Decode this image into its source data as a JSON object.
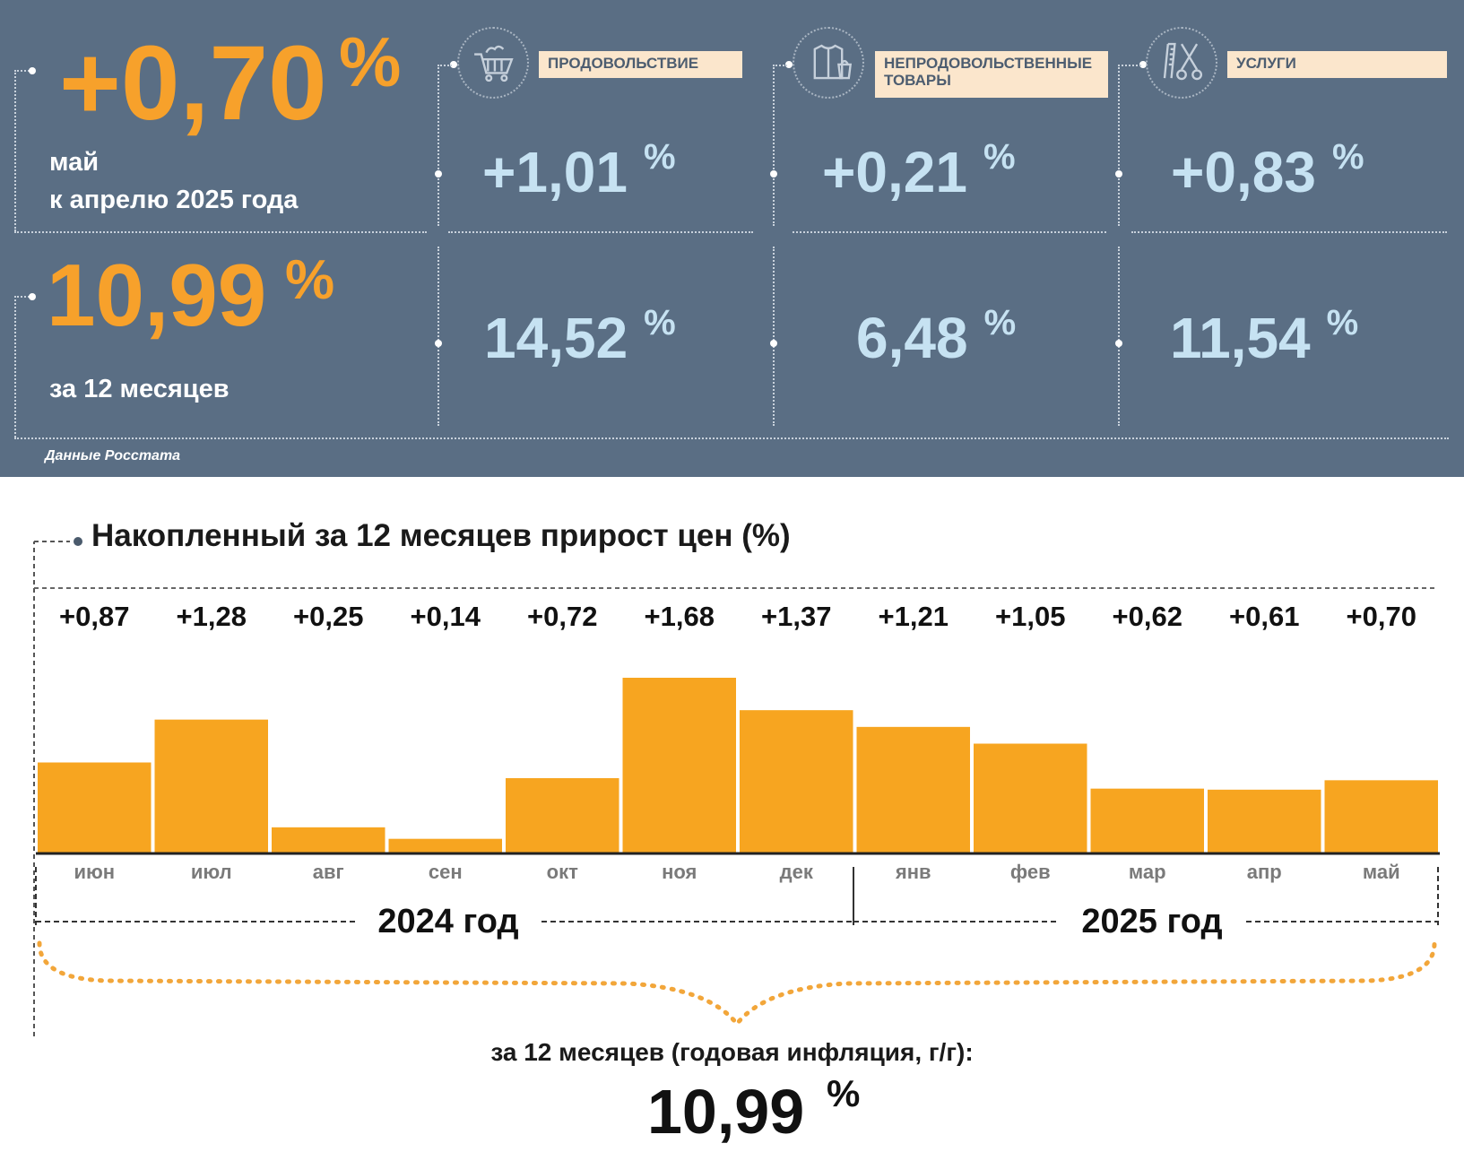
{
  "header": {
    "monthly_change": "+0,70",
    "monthly_percent_sign": "%",
    "monthly_caption_line1": "май",
    "monthly_caption_line2": "к апрелю 2025 года",
    "annual_change": "10,99",
    "annual_percent_sign": "%",
    "annual_caption": "за 12 месяцев",
    "source": "Данные Росстата"
  },
  "categories": [
    {
      "label": "ПРОДОВОЛЬСТВИЕ",
      "icon": "shopping-cart-icon",
      "monthly": "+1,01",
      "annual": "14,52",
      "percent_sign": "%"
    },
    {
      "label": "НЕПРОДОВОЛЬСТВЕННЫЕ ТОВАРЫ",
      "icon": "clothes-bag-icon",
      "monthly": "+0,21",
      "annual": "6,48",
      "percent_sign": "%"
    },
    {
      "label": "УСЛУГИ",
      "icon": "comb-scissors-icon",
      "monthly": "+0,83",
      "annual": "11,54",
      "percent_sign": "%"
    }
  ],
  "colors": {
    "panel_background": "#5a6e84",
    "accent_orange": "#f7a12b",
    "value_blue": "#c6e2f2",
    "label_background": "#fbe6cc",
    "bar_color": "#f7a520"
  },
  "chart_data": {
    "type": "bar",
    "title": "Накопленный за 12 месяцев прирост цен (%)",
    "categories": [
      "июн",
      "июл",
      "авг",
      "сен",
      "окт",
      "ноя",
      "дек",
      "янв",
      "фев",
      "мар",
      "апр",
      "май"
    ],
    "values": [
      0.87,
      1.28,
      0.25,
      0.14,
      0.72,
      1.68,
      1.37,
      1.21,
      1.05,
      0.62,
      0.61,
      0.7
    ],
    "value_labels": [
      "+0,87",
      "+1,28",
      "+0,25",
      "+0,14",
      "+0,72",
      "+1,68",
      "+1,37",
      "+1,21",
      "+1,05",
      "+0,62",
      "+0,61",
      "+0,70"
    ],
    "year_groups": [
      {
        "label": "2024 год",
        "months": 7
      },
      {
        "label": "2025 год",
        "months": 5
      }
    ],
    "ylim": [
      0,
      1.68
    ],
    "grid": false
  },
  "summary": {
    "caption": "за 12 месяцев (годовая инфляция, г/г):",
    "value": "10,99",
    "percent_sign": "%"
  }
}
